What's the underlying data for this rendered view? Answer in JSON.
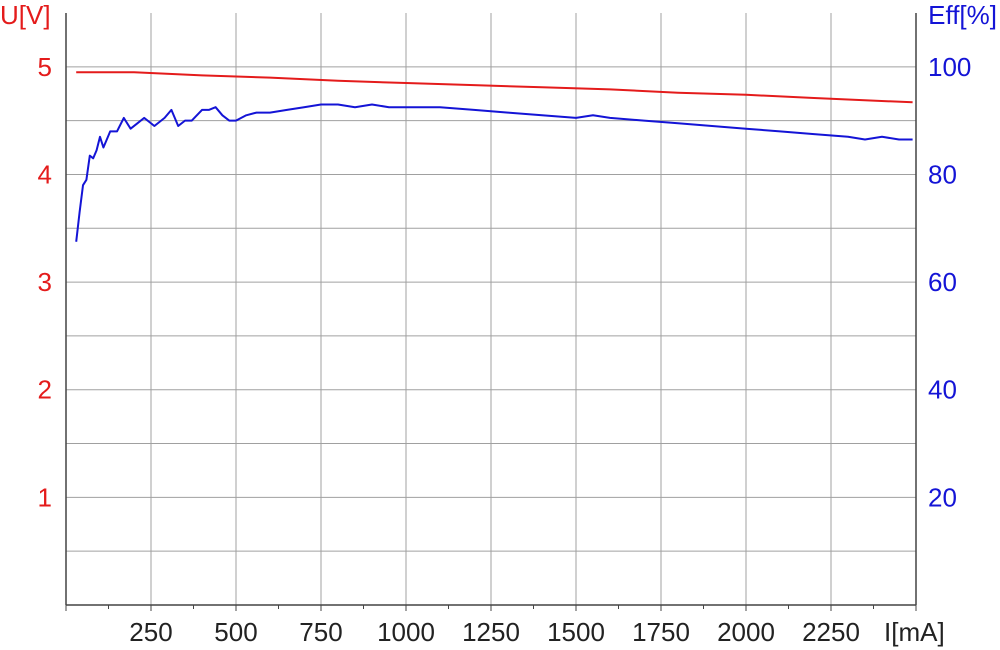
{
  "chart_data": {
    "type": "line",
    "title": "",
    "xlabel": "I[mA]",
    "ylabel_left": "U[V]",
    "ylabel_right": "Eff[%]",
    "xlim": [
      0,
      2500
    ],
    "ylim_left": [
      0,
      5.5
    ],
    "ylim_right": [
      0,
      110
    ],
    "grid": true,
    "x_ticks": [
      "250",
      "500",
      "750",
      "1000",
      "1250",
      "1500",
      "1750",
      "2000",
      "2250"
    ],
    "y_left_ticks": [
      "1",
      "2",
      "3",
      "4",
      "5"
    ],
    "y_right_ticks": [
      "20",
      "40",
      "60",
      "80",
      "100"
    ],
    "colors": {
      "left": "#e41b1b",
      "right": "#1414d6",
      "grid": "#a0a0a0",
      "axis": "#444444"
    },
    "series": [
      {
        "axis": "left",
        "x": [
          30,
          100,
          200,
          400,
          600,
          800,
          1000,
          1200,
          1400,
          1600,
          1800,
          2000,
          2200,
          2490
        ],
        "values": [
          4.95,
          4.95,
          4.95,
          4.92,
          4.9,
          4.87,
          4.85,
          4.83,
          4.81,
          4.79,
          4.76,
          4.74,
          4.71,
          4.67
        ]
      },
      {
        "axis": "right",
        "x": [
          30,
          40,
          50,
          60,
          70,
          80,
          90,
          100,
          110,
          120,
          130,
          150,
          170,
          190,
          210,
          230,
          260,
          290,
          310,
          330,
          350,
          370,
          400,
          420,
          440,
          460,
          480,
          500,
          530,
          560,
          600,
          650,
          700,
          750,
          800,
          850,
          900,
          950,
          1000,
          1050,
          1100,
          1200,
          1300,
          1400,
          1500,
          1550,
          1600,
          1700,
          1800,
          1900,
          2000,
          2100,
          2200,
          2300,
          2350,
          2400,
          2450,
          2490
        ],
        "values": [
          67.5,
          73,
          78,
          79,
          83.5,
          83,
          84.5,
          87,
          85,
          86.5,
          88,
          88,
          90.5,
          88.5,
          89.5,
          90.5,
          89,
          90.5,
          92,
          89,
          90,
          90,
          92,
          92,
          92.5,
          91,
          90,
          90,
          91,
          91.5,
          91.5,
          92,
          92.5,
          93,
          93,
          92.5,
          93,
          92.5,
          92.5,
          92.5,
          92.5,
          92,
          91.5,
          91,
          90.5,
          91,
          90.5,
          90,
          89.5,
          89,
          88.5,
          88,
          87.5,
          87,
          86.5,
          87,
          86.5,
          86.5
        ]
      }
    ]
  }
}
